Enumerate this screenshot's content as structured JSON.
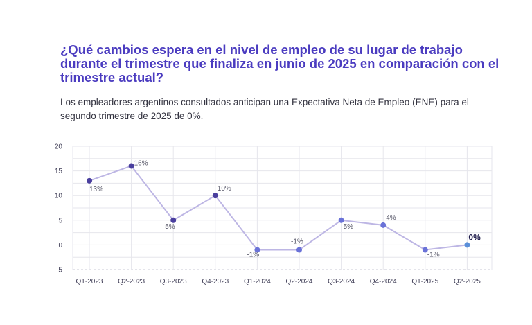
{
  "title": "¿Qué cambios espera en el nivel de empleo de su lugar de trabajo durante el trimestre que finaliza en junio de 2025 en comparación con el trimestre actual?",
  "subtitle": "Los empleadores argentinos consultados anticipan una Expectativa Neta de Empleo (ENE) para el segundo trimestre de 2025 de 0%.",
  "chart_data": {
    "type": "line",
    "title": "",
    "xlabel": "",
    "ylabel": "",
    "categories": [
      "Q1-2023",
      "Q2-2023",
      "Q3-2023",
      "Q4-2023",
      "Q1-2024",
      "Q2-2024",
      "Q3-2024",
      "Q4-2024",
      "Q1-2025",
      "Q2-2025"
    ],
    "values": [
      13,
      16,
      5,
      10,
      -1,
      -1,
      5,
      4,
      -1,
      0
    ],
    "data_labels": [
      "13%",
      "16%",
      "5%",
      "10%",
      "-1%",
      "-1%",
      "5%",
      "4%",
      "-1%",
      "0%"
    ],
    "yticks": [
      20,
      15,
      10,
      5,
      0,
      -5
    ],
    "ylim": [
      -5,
      20
    ],
    "grid": true,
    "colors": {
      "line": "#bdb6e4",
      "point_2023": "#4a3f9e",
      "point_later": "#6a72d8",
      "point_last": "#5a8fd9",
      "grid": "#e6e6ec",
      "zero_dash": "#c8c8d4"
    }
  }
}
